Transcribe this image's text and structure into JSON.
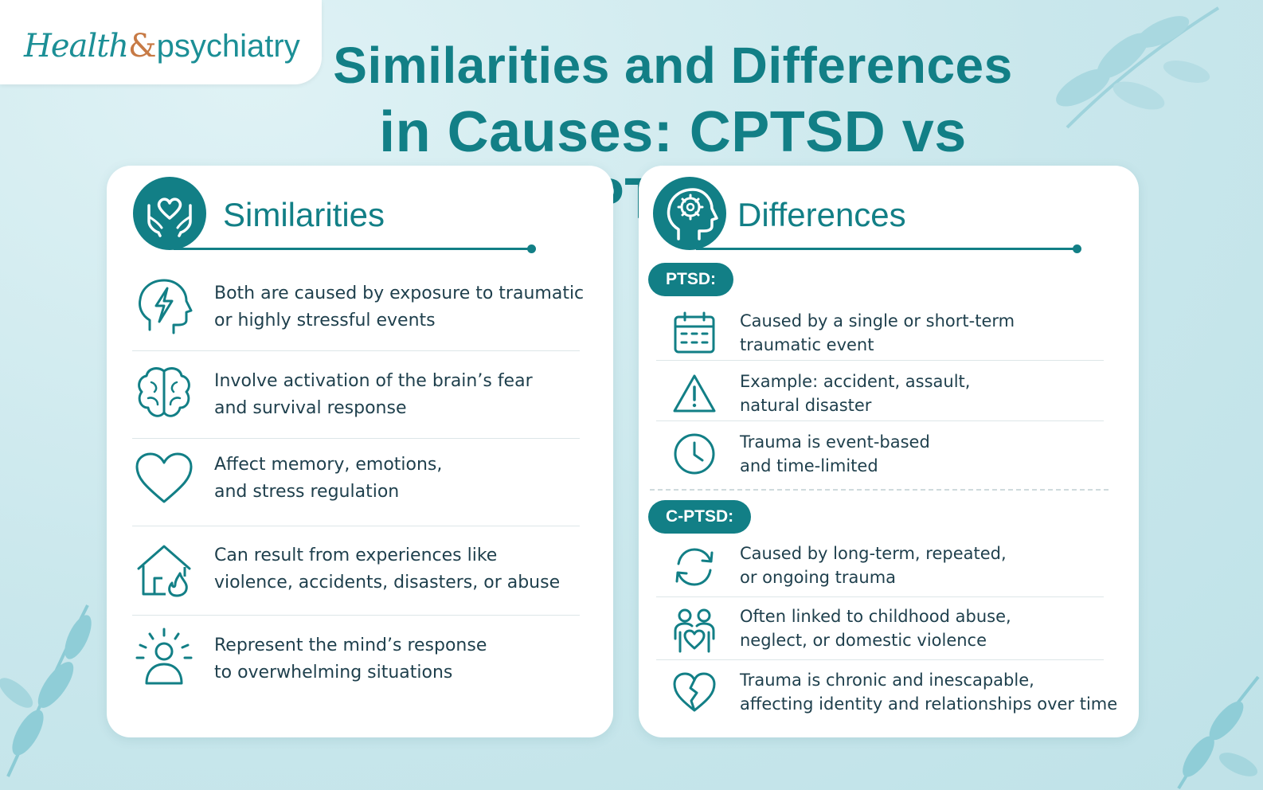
{
  "logo": {
    "part1": "Health",
    "amp": "&",
    "part2": "psychiatry"
  },
  "title": {
    "line1": "Similarities and Differences",
    "line2": "in Causes: CPTSD vs PTSD!"
  },
  "similarities": {
    "heading": "Similarities",
    "header_icon": "hands-holding-heart-icon",
    "items": [
      {
        "icon": "head-lightning-icon",
        "line1": "Both are caused by exposure to traumatic",
        "line2": "or highly stressful events"
      },
      {
        "icon": "brain-icon",
        "line1": "Involve activation of the brain’s fear",
        "line2": "and survival response"
      },
      {
        "icon": "heart-icon",
        "line1": "Affect memory, emotions,",
        "line2": "and stress regulation"
      },
      {
        "icon": "house-fire-icon",
        "line1": "Can result from experiences like",
        "line2": "violence, accidents, disasters, or abuse"
      },
      {
        "icon": "person-radiating-icon",
        "line1": "Represent the mind’s response",
        "line2": "to overwhelming situations"
      }
    ]
  },
  "differences": {
    "heading": "Differences",
    "header_icon": "head-gear-icon",
    "ptsd": {
      "label": "PTSD:",
      "items": [
        {
          "icon": "calendar-icon",
          "line1": "Caused by a single or short-term",
          "line2": "traumatic event"
        },
        {
          "icon": "warning-triangle-icon",
          "line1": "Example: accident, assault,",
          "line2": "natural disaster"
        },
        {
          "icon": "clock-icon",
          "line1": "Trauma is event-based",
          "line2": "and time-limited"
        }
      ]
    },
    "cptsd": {
      "label": "C-PTSD:",
      "items": [
        {
          "icon": "cycle-arrows-icon",
          "line1": "Caused by long-term, repeated,",
          "line2": "or ongoing trauma"
        },
        {
          "icon": "family-heart-icon",
          "line1": "Often linked to childhood abuse,",
          "line2": "neglect, or domestic violence"
        },
        {
          "icon": "broken-heart-icon",
          "line1": "Trauma is chronic and inescapable,",
          "line2": "affecting identity and relationships over time"
        }
      ]
    }
  },
  "colors": {
    "teal": "#127f86",
    "background": "#cbe9ee",
    "text": "#1e3f4c",
    "logo_amp": "#c77a45"
  }
}
